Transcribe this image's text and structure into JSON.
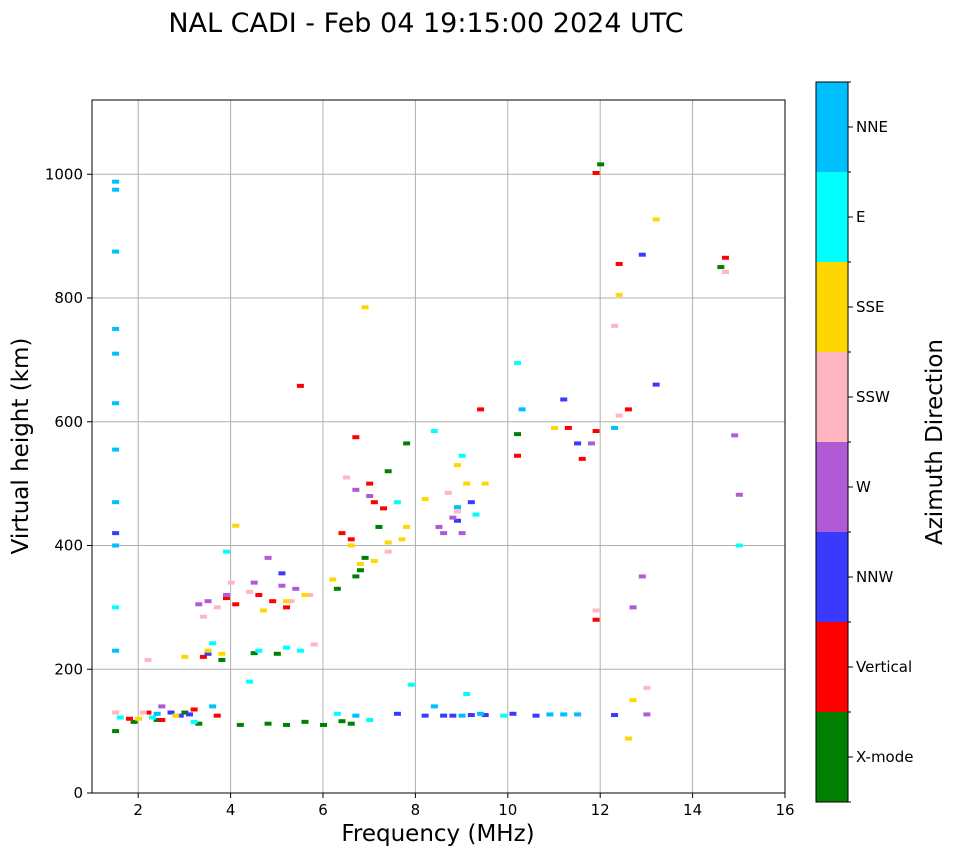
{
  "chart_data": {
    "type": "scatter",
    "title": "NAL CADI - Feb 04 19:15:00 2024 UTC",
    "xlabel": "Frequency (MHz)",
    "ylabel": "Virtual height (km)",
    "xlim": [
      1,
      16
    ],
    "ylim": [
      0,
      1120
    ],
    "xticks": [
      2,
      4,
      6,
      8,
      10,
      12,
      14,
      16
    ],
    "yticks": [
      0,
      200,
      400,
      600,
      800,
      1000
    ],
    "grid": true,
    "colorbar": {
      "label": "Azimuth Direction",
      "categories": [
        {
          "name": "X-mode",
          "color": "#008000"
        },
        {
          "name": "Vertical",
          "color": "#ff0000"
        },
        {
          "name": "NNW",
          "color": "#3a3aff"
        },
        {
          "name": "W",
          "color": "#b05ad6"
        },
        {
          "name": "SSW",
          "color": "#ffb6c1"
        },
        {
          "name": "SSE",
          "color": "#ffd700"
        },
        {
          "name": "E",
          "color": "#00ffff"
        },
        {
          "name": "NNE",
          "color": "#00bfff"
        }
      ]
    },
    "series": [
      {
        "name": "X-mode",
        "points": [
          [
            1.5,
            100
          ],
          [
            1.9,
            115
          ],
          [
            2.4,
            118
          ],
          [
            3.3,
            112
          ],
          [
            4.2,
            110
          ],
          [
            4.8,
            112
          ],
          [
            5.2,
            110
          ],
          [
            5.6,
            115
          ],
          [
            6.0,
            110
          ],
          [
            6.4,
            116
          ],
          [
            6.6,
            112
          ],
          [
            6.7,
            350
          ],
          [
            6.8,
            360
          ],
          [
            6.3,
            330
          ],
          [
            7.8,
            565
          ],
          [
            10.2,
            580
          ],
          [
            12.0,
            1016
          ],
          [
            14.6,
            850
          ],
          [
            7.4,
            520
          ],
          [
            5.0,
            225
          ],
          [
            3.8,
            215
          ],
          [
            4.5,
            226
          ],
          [
            6.9,
            380
          ],
          [
            7.2,
            430
          ],
          [
            3.0,
            130
          ]
        ]
      },
      {
        "name": "Vertical",
        "points": [
          [
            1.8,
            120
          ],
          [
            2.2,
            130
          ],
          [
            2.5,
            118
          ],
          [
            3.2,
            135
          ],
          [
            3.7,
            125
          ],
          [
            3.9,
            315
          ],
          [
            4.1,
            305
          ],
          [
            4.9,
            310
          ],
          [
            5.2,
            300
          ],
          [
            5.5,
            658
          ],
          [
            6.4,
            420
          ],
          [
            6.7,
            575
          ],
          [
            7.1,
            470
          ],
          [
            7.3,
            460
          ],
          [
            7.0,
            500
          ],
          [
            9.4,
            620
          ],
          [
            10.2,
            545
          ],
          [
            11.3,
            590
          ],
          [
            11.6,
            540
          ],
          [
            11.9,
            585
          ],
          [
            11.9,
            280
          ],
          [
            11.9,
            1002
          ],
          [
            12.4,
            855
          ],
          [
            12.6,
            620
          ],
          [
            14.7,
            865
          ],
          [
            3.4,
            220
          ],
          [
            4.6,
            320
          ],
          [
            6.6,
            410
          ]
        ]
      },
      {
        "name": "NNW",
        "points": [
          [
            1.5,
            420
          ],
          [
            2.9,
            125
          ],
          [
            3.1,
            127
          ],
          [
            5.1,
            355
          ],
          [
            7.6,
            128
          ],
          [
            8.2,
            125
          ],
          [
            8.6,
            125
          ],
          [
            8.8,
            125
          ],
          [
            9.2,
            126
          ],
          [
            9.5,
            126
          ],
          [
            10.1,
            128
          ],
          [
            10.6,
            125
          ],
          [
            11.2,
            636
          ],
          [
            11.5,
            565
          ],
          [
            12.3,
            126
          ],
          [
            12.9,
            870
          ],
          [
            13.2,
            660
          ],
          [
            8.9,
            440
          ],
          [
            9.2,
            470
          ],
          [
            3.5,
            225
          ],
          [
            2.7,
            130
          ]
        ]
      },
      {
        "name": "W",
        "points": [
          [
            3.5,
            310
          ],
          [
            3.3,
            305
          ],
          [
            3.9,
            320
          ],
          [
            4.5,
            340
          ],
          [
            4.8,
            380
          ],
          [
            5.1,
            335
          ],
          [
            5.4,
            330
          ],
          [
            6.7,
            490
          ],
          [
            7.0,
            480
          ],
          [
            8.5,
            430
          ],
          [
            8.8,
            445
          ],
          [
            9.0,
            420
          ],
          [
            8.6,
            420
          ],
          [
            11.8,
            565
          ],
          [
            12.7,
            300
          ],
          [
            12.9,
            350
          ],
          [
            15.0,
            482
          ],
          [
            14.9,
            578
          ],
          [
            13.0,
            127
          ],
          [
            2.5,
            140
          ]
        ]
      },
      {
        "name": "SSW",
        "points": [
          [
            1.5,
            130
          ],
          [
            2.2,
            215
          ],
          [
            3.4,
            285
          ],
          [
            3.7,
            300
          ],
          [
            4.0,
            340
          ],
          [
            4.4,
            325
          ],
          [
            5.3,
            310
          ],
          [
            5.7,
            320
          ],
          [
            6.5,
            510
          ],
          [
            7.4,
            390
          ],
          [
            8.7,
            485
          ],
          [
            8.9,
            455
          ],
          [
            11.9,
            295
          ],
          [
            12.3,
            755
          ],
          [
            12.4,
            610
          ],
          [
            13.0,
            170
          ],
          [
            14.7,
            842
          ],
          [
            2.1,
            130
          ],
          [
            5.8,
            240
          ]
        ]
      },
      {
        "name": "SSE",
        "points": [
          [
            2.0,
            120
          ],
          [
            2.8,
            125
          ],
          [
            3.5,
            230
          ],
          [
            3.8,
            225
          ],
          [
            4.1,
            432
          ],
          [
            4.7,
            295
          ],
          [
            5.2,
            310
          ],
          [
            5.6,
            320
          ],
          [
            6.2,
            345
          ],
          [
            6.6,
            400
          ],
          [
            6.9,
            785
          ],
          [
            7.1,
            375
          ],
          [
            7.4,
            405
          ],
          [
            7.7,
            410
          ],
          [
            7.8,
            430
          ],
          [
            8.2,
            475
          ],
          [
            8.9,
            530
          ],
          [
            9.1,
            500
          ],
          [
            9.5,
            500
          ],
          [
            12.4,
            805
          ],
          [
            12.7,
            150
          ],
          [
            12.6,
            88
          ],
          [
            13.2,
            927
          ],
          [
            11.0,
            590
          ],
          [
            3.0,
            220
          ],
          [
            6.8,
            370
          ]
        ]
      },
      {
        "name": "E",
        "points": [
          [
            1.5,
            300
          ],
          [
            1.6,
            122
          ],
          [
            2.3,
            122
          ],
          [
            3.2,
            115
          ],
          [
            3.6,
            242
          ],
          [
            3.9,
            390
          ],
          [
            4.6,
            230
          ],
          [
            5.2,
            235
          ],
          [
            5.5,
            230
          ],
          [
            6.3,
            128
          ],
          [
            7.0,
            118
          ],
          [
            7.9,
            175
          ],
          [
            8.4,
            585
          ],
          [
            9.1,
            160
          ],
          [
            9.3,
            450
          ],
          [
            9.9,
            125
          ],
          [
            10.2,
            695
          ],
          [
            15.0,
            400
          ],
          [
            4.4,
            180
          ],
          [
            7.6,
            470
          ],
          [
            9.0,
            545
          ]
        ]
      },
      {
        "name": "NNE",
        "points": [
          [
            1.5,
            988
          ],
          [
            1.5,
            975
          ],
          [
            1.5,
            875
          ],
          [
            1.5,
            750
          ],
          [
            1.5,
            710
          ],
          [
            1.5,
            630
          ],
          [
            1.5,
            555
          ],
          [
            1.5,
            470
          ],
          [
            1.5,
            400
          ],
          [
            1.5,
            230
          ],
          [
            2.4,
            128
          ],
          [
            3.6,
            140
          ],
          [
            6.7,
            125
          ],
          [
            8.4,
            140
          ],
          [
            9.0,
            125
          ],
          [
            9.4,
            128
          ],
          [
            10.3,
            620
          ],
          [
            10.9,
            127
          ],
          [
            11.2,
            127
          ],
          [
            11.5,
            127
          ],
          [
            12.3,
            590
          ],
          [
            8.9,
            462
          ]
        ]
      }
    ]
  }
}
